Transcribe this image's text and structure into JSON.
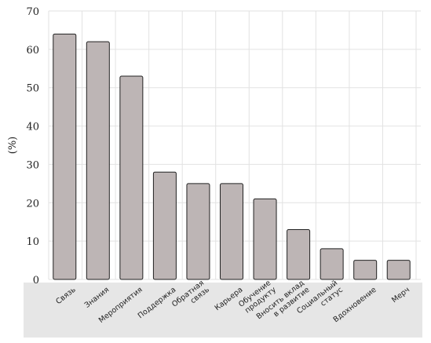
{
  "chart_data": {
    "type": "bar",
    "categories": [
      [
        "Связь"
      ],
      [
        "Знания"
      ],
      [
        "Мероприятия"
      ],
      [
        "Поддержка"
      ],
      [
        "Обратная",
        "связь"
      ],
      [
        "Карьера"
      ],
      [
        "Обучение",
        "продукту"
      ],
      [
        "Вносить вклад",
        "в развитие"
      ],
      [
        "Социальный",
        "статус"
      ],
      [
        "Вдохновение"
      ],
      [
        "Мерч"
      ]
    ],
    "values": [
      64,
      62,
      53,
      28,
      25,
      25,
      21,
      13,
      8,
      5,
      5
    ],
    "ylabel": "(%)",
    "ylim": [
      0,
      70
    ],
    "yticks": [
      0,
      10,
      20,
      30,
      40,
      50,
      60,
      70
    ],
    "grid": true,
    "colors": {
      "bar": "#bdb5b5",
      "bar_edge": "#222222",
      "label_band": "#e6e6e6",
      "grid": "#e2e2e2"
    }
  }
}
